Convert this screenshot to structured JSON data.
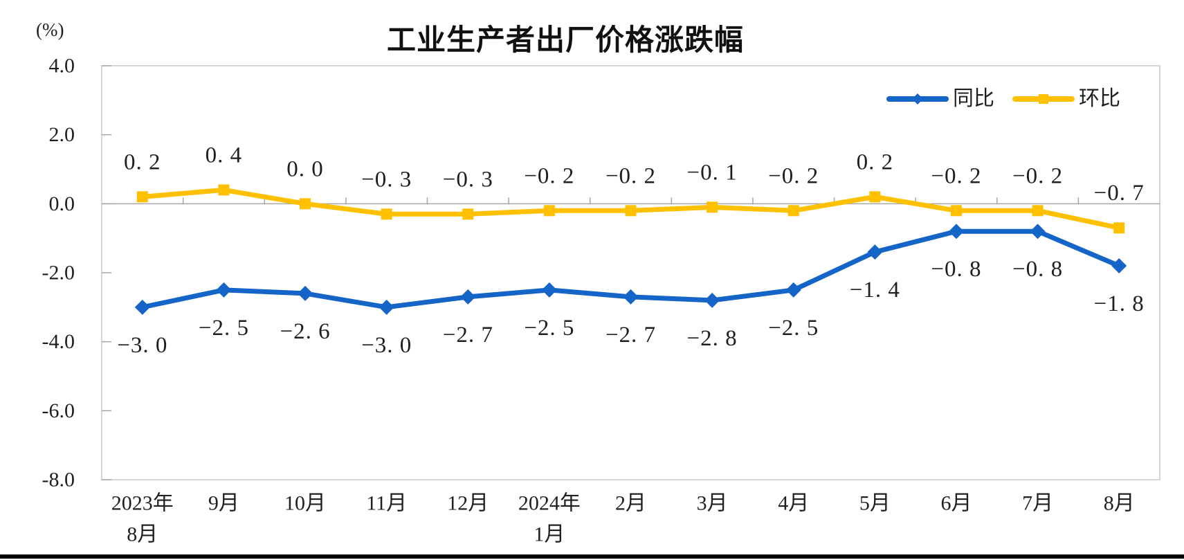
{
  "page": {
    "background": "#FFFFFF",
    "bottom_bar_color": "#000000"
  },
  "chart_data": {
    "type": "line",
    "title": "工业生产者出厂价格涨跌幅",
    "unit": "(%)",
    "categories": [
      "2023年\n8月",
      "9月",
      "10月",
      "11月",
      "12月",
      "2024年\n1月",
      "2月",
      "3月",
      "4月",
      "5月",
      "6月",
      "7月",
      "8月"
    ],
    "series": [
      {
        "name": "同比",
        "color": "#1565C8",
        "marker": "diamond",
        "label_position": "below",
        "values": [
          -3.0,
          -2.5,
          -2.6,
          -3.0,
          -2.7,
          -2.5,
          -2.7,
          -2.8,
          -2.5,
          -1.4,
          -0.8,
          -0.8,
          -1.8
        ]
      },
      {
        "name": "环比",
        "color": "#FFC000",
        "marker": "square",
        "label_position": "above",
        "values": [
          0.2,
          0.4,
          0.0,
          -0.3,
          -0.3,
          -0.2,
          -0.2,
          -0.1,
          -0.2,
          0.2,
          -0.2,
          -0.2,
          -0.7
        ]
      }
    ],
    "y_axis": {
      "min": -8.0,
      "max": 4.0,
      "step": 2.0,
      "tick_labels": [
        "4.0",
        "2.0",
        "0.0",
        "-2.0",
        "-4.0",
        "-6.0",
        "-8.0"
      ]
    },
    "legend_position": "top-right-inside",
    "gridlines": "zero-line-only",
    "style": {
      "zero_line_color": "#A6A6A6",
      "frame_color": "#C9C9C9",
      "tick_color": "#A6A6A6",
      "text_color": "#1F1F1F"
    }
  }
}
